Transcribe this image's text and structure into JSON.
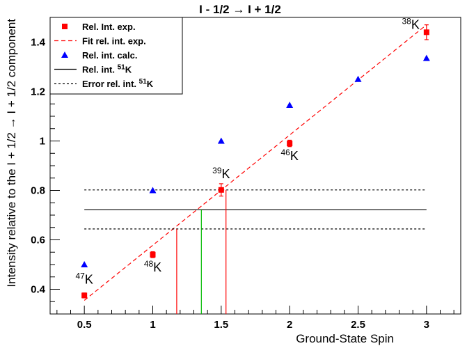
{
  "chart_data": {
    "type": "scatter",
    "title": "I - 1/2 → I + 1/2",
    "xlabel": "Ground-State Spin",
    "ylabel": "Intensity relative to the I + 1/2 → I + 1/2 component",
    "xlim": [
      0.25,
      3.25
    ],
    "ylim": [
      0.3,
      1.5
    ],
    "x_ticks": [
      0.5,
      1,
      1.5,
      2,
      2.5,
      3
    ],
    "x_tick_labels": [
      "0.5",
      "1",
      "1.5",
      "2",
      "2.5",
      "3"
    ],
    "y_ticks": [
      0.4,
      0.6,
      0.8,
      1.0,
      1.2,
      1.4
    ],
    "y_tick_labels": [
      "0.4",
      "0.6",
      "0.8",
      "1",
      "1.2",
      "1.4"
    ],
    "grid": false,
    "legend_position": "top-left",
    "legend": [
      {
        "label": "Rel. Int. exp.",
        "label_sup": "",
        "label_after": "",
        "marker": "square",
        "color": "#ff0000"
      },
      {
        "label": "Fit rel. int. exp.",
        "label_sup": "",
        "label_after": "",
        "marker": "dashed-line",
        "color": "#ff0000"
      },
      {
        "label": "Rel. int. calc.",
        "label_sup": "",
        "label_after": "",
        "marker": "triangle",
        "color": "#0000ff"
      },
      {
        "label": "Rel. int. ",
        "label_sup": "51",
        "label_after": "K",
        "marker": "solid-line",
        "color": "#000000"
      },
      {
        "label": "Error rel. int. ",
        "label_sup": "51",
        "label_after": "K",
        "marker": "dotted-line",
        "color": "#000000"
      }
    ],
    "series": [
      {
        "name": "Rel. Int. exp.",
        "marker": "square",
        "color": "#ff0000",
        "points": [
          {
            "x": 0.5,
            "y": 0.375,
            "err": 0.01
          },
          {
            "x": 1.0,
            "y": 0.54,
            "err": 0.012
          },
          {
            "x": 1.5,
            "y": 0.802,
            "err": 0.025
          },
          {
            "x": 2.0,
            "y": 0.99,
            "err": 0.013
          },
          {
            "x": 3.0,
            "y": 1.44,
            "err": 0.03
          }
        ]
      },
      {
        "name": "Fit rel. int. exp.",
        "style": "dashed",
        "color": "#ff0000",
        "points": [
          {
            "x": 0.5,
            "y": 0.355
          },
          {
            "x": 3.0,
            "y": 1.47
          }
        ]
      },
      {
        "name": "Rel. int. calc.",
        "marker": "triangle",
        "color": "#0000ff",
        "points": [
          {
            "x": 0.5,
            "y": 0.5
          },
          {
            "x": 1.0,
            "y": 0.8
          },
          {
            "x": 1.5,
            "y": 1.0
          },
          {
            "x": 2.0,
            "y": 1.145
          },
          {
            "x": 2.5,
            "y": 1.25
          },
          {
            "x": 3.0,
            "y": 1.335
          }
        ]
      },
      {
        "name": "Rel. int. 51K",
        "style": "solid",
        "color": "#000000",
        "points": [
          {
            "x": 0.5,
            "y": 0.722
          },
          {
            "x": 3.0,
            "y": 0.722
          }
        ]
      },
      {
        "name": "Error rel. int. 51K (upper)",
        "style": "dotted",
        "color": "#000000",
        "points": [
          {
            "x": 0.5,
            "y": 0.802
          },
          {
            "x": 3.0,
            "y": 0.802
          }
        ]
      },
      {
        "name": "Error rel. int. 51K (lower)",
        "style": "dotted",
        "color": "#000000",
        "points": [
          {
            "x": 0.5,
            "y": 0.644
          },
          {
            "x": 3.0,
            "y": 0.644
          }
        ]
      }
    ],
    "vertical_markers": [
      {
        "x": 1.175,
        "y_top": 0.644,
        "color": "#ff0000"
      },
      {
        "x": 1.355,
        "y_top": 0.722,
        "color": "#00bb00"
      },
      {
        "x": 1.535,
        "y_top": 0.802,
        "color": "#ff0000"
      }
    ],
    "annotations": [
      {
        "sup": "47",
        "text": "K",
        "x": 0.5,
        "y": 0.375,
        "pos": "above"
      },
      {
        "sup": "48",
        "text": "K",
        "x": 1.0,
        "y": 0.54,
        "pos": "below"
      },
      {
        "sup": "39",
        "text": "K",
        "x": 1.5,
        "y": 0.802,
        "pos": "above"
      },
      {
        "sup": "46",
        "text": "K",
        "x": 2.0,
        "y": 0.99,
        "pos": "below"
      },
      {
        "sup": "38",
        "text": "K",
        "x": 3.0,
        "y": 1.44,
        "pos": "left"
      }
    ]
  }
}
